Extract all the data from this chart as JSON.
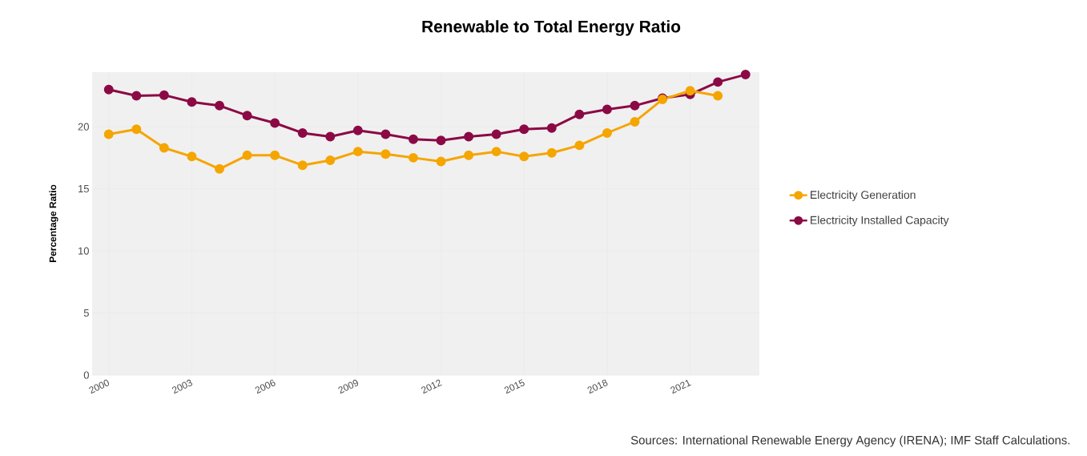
{
  "chart_data": {
    "type": "line",
    "title": "Renewable to Total Energy Ratio",
    "ylabel": "Percentage Ratio",
    "annotations": [
      "Sources: International Renewable Energy Agency (IRENA); IMF Staff Calculations."
    ],
    "x": [
      2000,
      2001,
      2002,
      2003,
      2004,
      2005,
      2006,
      2007,
      2008,
      2009,
      2010,
      2011,
      2012,
      2013,
      2014,
      2015,
      2016,
      2017,
      2018,
      2019,
      2020,
      2021,
      2022,
      2023
    ],
    "series": [
      {
        "name": "Electricity Generation",
        "color": "#f5a500",
        "values": [
          19.4,
          19.8,
          18.3,
          17.6,
          16.6,
          17.7,
          17.7,
          16.9,
          17.3,
          18.0,
          17.8,
          17.5,
          17.2,
          17.7,
          18.0,
          17.6,
          17.9,
          18.5,
          19.5,
          20.4,
          22.2,
          22.9,
          22.5,
          null
        ]
      },
      {
        "name": "Electricity Installed Capacity",
        "color": "#8b0a45",
        "values": [
          23.0,
          22.5,
          22.55,
          22.0,
          21.7,
          20.9,
          20.3,
          19.5,
          19.2,
          19.7,
          19.4,
          19.0,
          18.9,
          19.2,
          19.4,
          19.8,
          19.9,
          21.0,
          21.4,
          21.7,
          22.3,
          22.6,
          23.6,
          24.2
        ]
      }
    ],
    "xlim": [
      1999.4,
      2023.5
    ],
    "xticks": [
      2000,
      2003,
      2006,
      2009,
      2012,
      2015,
      2018,
      2021
    ],
    "ylim": [
      0,
      24.4
    ],
    "yticks": [
      0,
      5,
      10,
      15,
      20
    ],
    "grid": true,
    "legend": "right",
    "marker": "circle",
    "line_style": "solid"
  }
}
